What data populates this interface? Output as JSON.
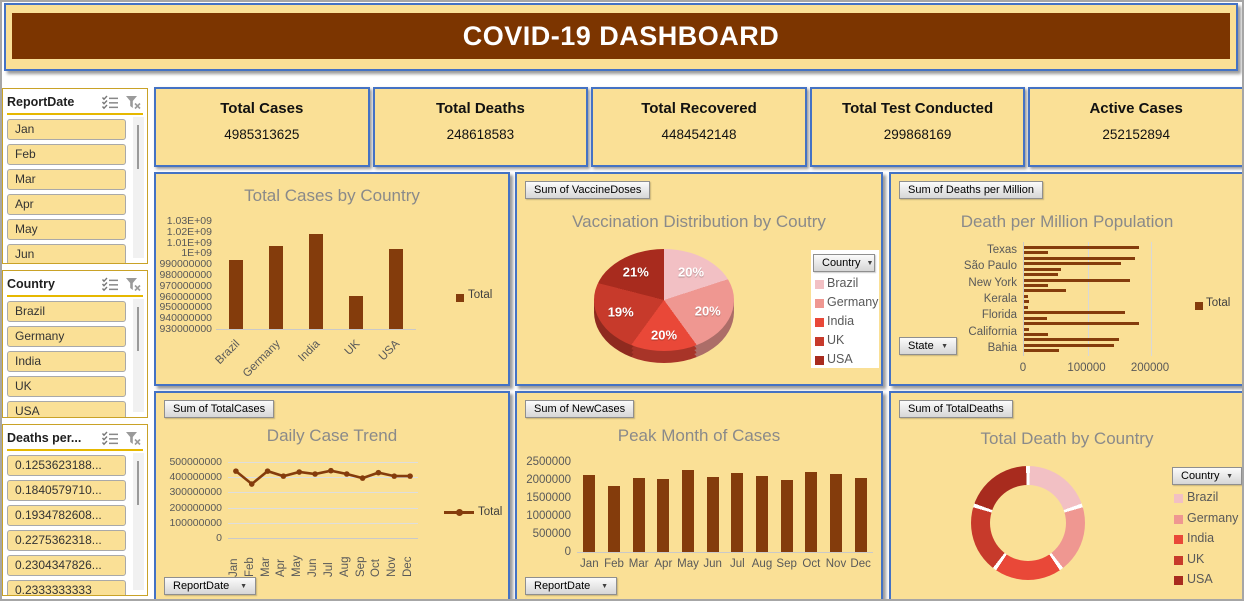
{
  "title": "COVID-19 DASHBOARD",
  "colors": {
    "background": "#FAE096",
    "banner": "#7C3500",
    "panel_border": "#4472C4",
    "series": "#843C0C",
    "country_palette": [
      "#F2C0C4",
      "#EF9791",
      "#E94838",
      "#C73A2B",
      "#A82B1E"
    ]
  },
  "slicers": [
    {
      "name": "ReportDate",
      "items": [
        "Jan",
        "Feb",
        "Mar",
        "Apr",
        "May",
        "Jun"
      ]
    },
    {
      "name": "Country",
      "items": [
        "Brazil",
        "Germany",
        "India",
        "UK",
        "USA"
      ]
    },
    {
      "name": "Deaths per...",
      "items": [
        "0.1253623188...",
        "0.1840579710...",
        "0.1934782608...",
        "0.2275362318...",
        "0.2304347826...",
        "0.2333333333"
      ]
    }
  ],
  "kpis": [
    {
      "label": "Total Cases",
      "value": "4985313625"
    },
    {
      "label": "Total Deaths",
      "value": "248618583"
    },
    {
      "label": "Total Recovered",
      "value": "4484542148"
    },
    {
      "label": "Total Test Conducted",
      "value": "299868169"
    },
    {
      "label": "Active Cases",
      "value": "252152894"
    }
  ],
  "chart_data": [
    {
      "id": "total-cases-by-country",
      "type": "bar",
      "title": "Total Cases by Country",
      "categories": [
        "Brazil",
        "Germany",
        "India",
        "UK",
        "USA"
      ],
      "values": [
        994000000,
        1007000000,
        1018000000,
        960500000,
        1004000000
      ],
      "ylim": [
        930000000,
        1030000000
      ],
      "yticks": [
        "1.03E+09",
        "1.02E+09",
        "1.01E+09",
        "1E+09",
        "990000000",
        "980000000",
        "970000000",
        "960000000",
        "950000000",
        "940000000",
        "930000000"
      ],
      "legend": [
        "Total"
      ],
      "legend_position": "right",
      "grid": false
    },
    {
      "id": "vaccination-distribution",
      "type": "pie",
      "title": "Vaccination Distribution by Coutry",
      "field_button": "Sum of VaccineDoses",
      "legend_button": "Country",
      "categories": [
        "Brazil",
        "Germany",
        "India",
        "UK",
        "USA"
      ],
      "values": [
        20,
        20,
        20,
        19,
        21
      ],
      "labels": [
        "20%",
        "20%",
        "20%",
        "19%",
        "21%"
      ],
      "legend_position": "right"
    },
    {
      "id": "death-per-million",
      "type": "hbar",
      "title": "Death per Million Population",
      "field_button": "Sum of Deaths per Million",
      "axis_button": "State",
      "categories": [
        "Texas",
        "São Paulo",
        "New York",
        "Kerala",
        "Florida",
        "California",
        "Bahia"
      ],
      "group_values": [
        [
          180500,
          38400,
          174200
        ],
        [
          153200,
          57900,
          53200
        ],
        [
          167400,
          37400,
          65800
        ],
        [
          6800,
          8400,
          6800
        ],
        [
          159500,
          36800,
          181600
        ],
        [
          8400,
          38400,
          148900
        ],
        [
          141000,
          55800
        ]
      ],
      "xlim": [
        0,
        267700
      ],
      "xticks": [
        "0",
        "100000",
        "200000"
      ],
      "legend": [
        "Total"
      ],
      "legend_position": "right",
      "grid": true
    },
    {
      "id": "daily-case-trend",
      "type": "line",
      "title": "Daily Case Trend",
      "field_button": "Sum of TotalCases",
      "axis_button": "ReportDate",
      "categories": [
        "Jan",
        "Feb",
        "Mar",
        "Apr",
        "May",
        "Jun",
        "Jul",
        "Aug",
        "Sep",
        "Oct",
        "Nov",
        "Dec"
      ],
      "values": [
        440000000,
        355000000,
        440000000,
        407000000,
        434000000,
        421000000,
        443000000,
        421000000,
        394000000,
        430000000,
        407000000,
        407000000
      ],
      "ylim": [
        0,
        500000000
      ],
      "yticks": [
        "500000000",
        "400000000",
        "300000000",
        "200000000",
        "100000000",
        "0"
      ],
      "legend": [
        "Total"
      ],
      "legend_position": "right",
      "grid": true
    },
    {
      "id": "peak-month-of-cases",
      "type": "column",
      "title": "Peak Month of Cases",
      "field_button": "Sum of NewCases",
      "axis_button": "ReportDate",
      "categories": [
        "Jan",
        "Feb",
        "Mar",
        "Apr",
        "May",
        "Jun",
        "Jul",
        "Aug",
        "Sep",
        "Oct",
        "Nov",
        "Dec"
      ],
      "values": [
        2130000,
        1820000,
        2050000,
        2020000,
        2270000,
        2080000,
        2190000,
        2120000,
        1990000,
        2210000,
        2180000,
        2050000
      ],
      "ylim": [
        0,
        2500000
      ],
      "yticks": [
        "2500000",
        "2000000",
        "1500000",
        "1000000",
        "500000",
        "0"
      ],
      "grid": false
    },
    {
      "id": "total-death-by-country",
      "type": "donut",
      "title": "Total Death by Country",
      "field_button": "Sum of TotalDeaths",
      "legend_button": "Country",
      "categories": [
        "Brazil",
        "Germany",
        "India",
        "UK",
        "USA"
      ],
      "values": [
        20,
        20,
        20,
        20,
        20
      ],
      "legend_position": "right"
    }
  ]
}
